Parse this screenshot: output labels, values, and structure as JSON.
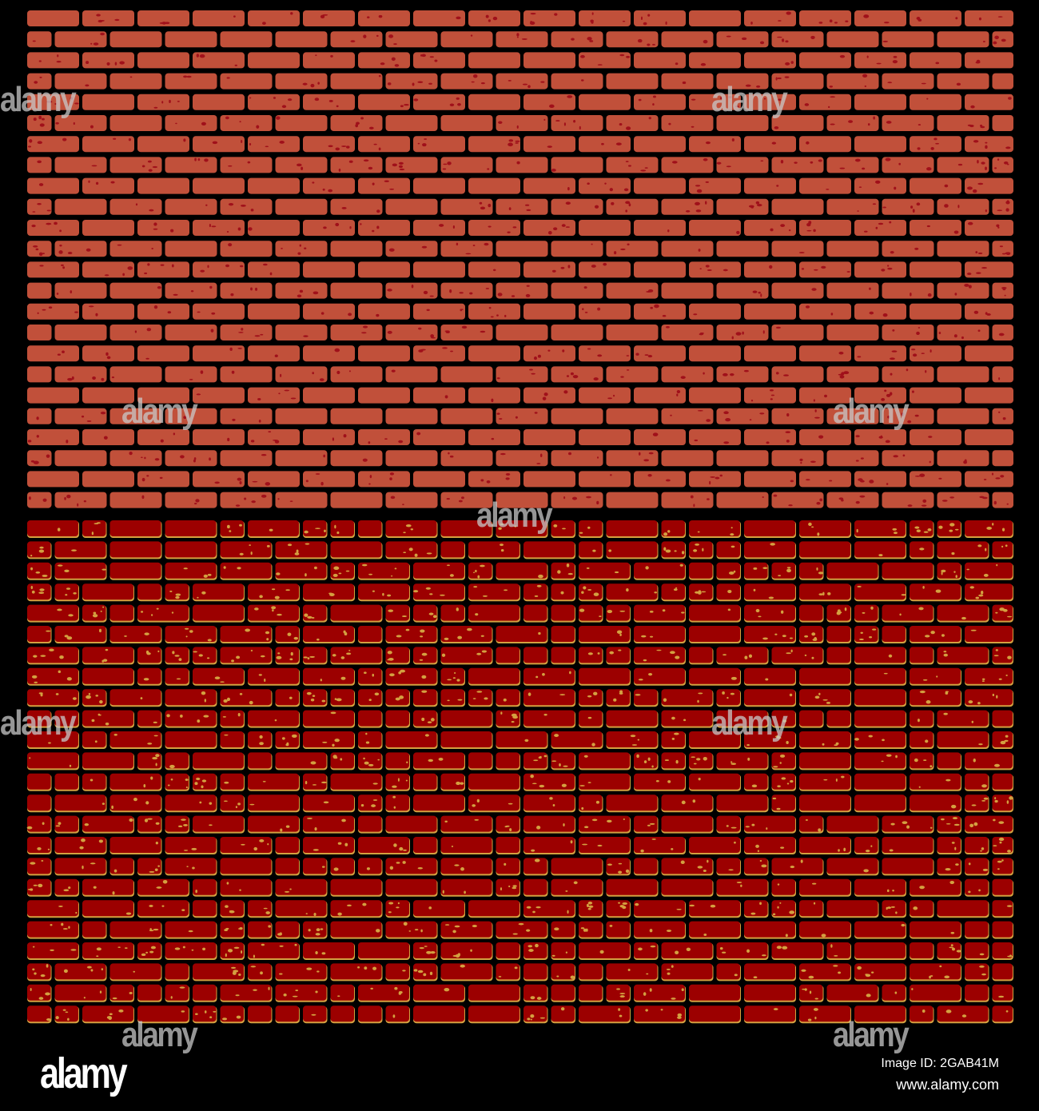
{
  "image": {
    "top_wall": {
      "brick_color": "#c1503a",
      "speckle_color": "#a0101a",
      "mortar_color": "#000000"
    },
    "bottom_wall": {
      "brick_color": "#9c0000",
      "edge_color": "#d4a040",
      "speckle_color": "#d4a040",
      "mortar_color": "#000000"
    }
  },
  "watermark": {
    "text": "alamy"
  },
  "footer": {
    "logo": "alamy",
    "image_id": "Image ID: 2GAB41M",
    "website": "www.alamy.com"
  }
}
